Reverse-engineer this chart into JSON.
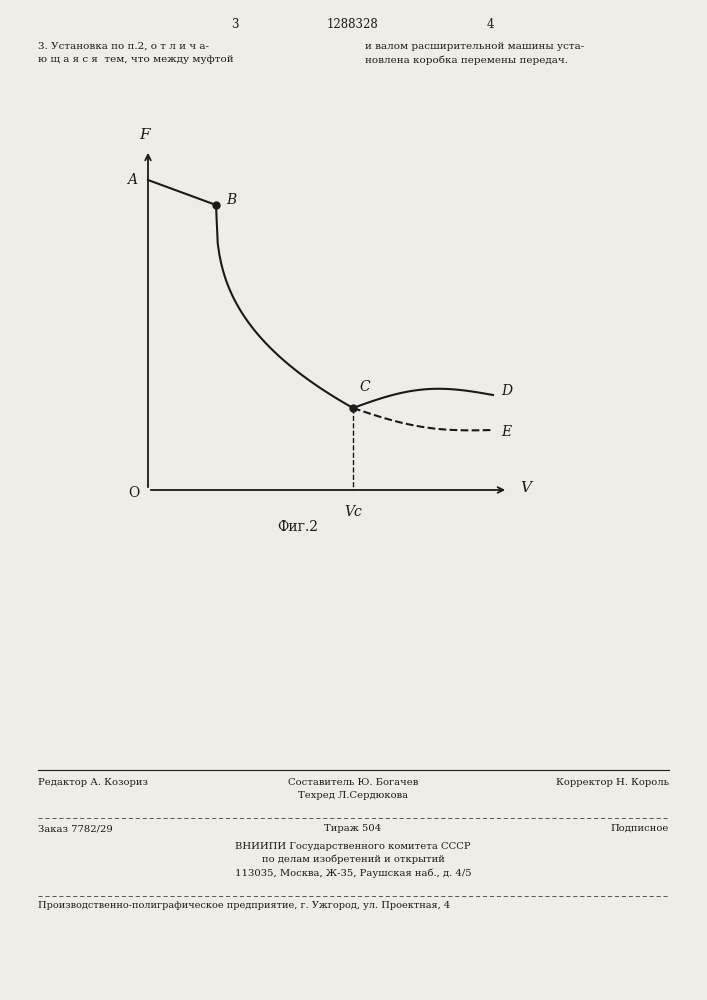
{
  "bg_color": "#f0ede8",
  "page_number_left": "3",
  "page_center_title": "1288328",
  "page_number_right": "4",
  "top_left_text": "3. Установка по п.2, о т л и ч а-\nю щ а я с я  тем, что между муфтой",
  "top_right_text": "и валом расширительной машины уста-\nновлена коробка перемены передач.",
  "fig_label": "Фиг.2",
  "axis_label_F": "F",
  "axis_label_V": "V",
  "axis_label_O": "O",
  "point_labels": [
    "A",
    "B",
    "C",
    "D",
    "E"
  ],
  "vc_label": "Vс",
  "footer_line1_left": "Редактор А. Козориз",
  "footer_line1_center": "Составитель Ю. Богачев\nТехред Л.Сердюкова",
  "footer_line1_right": "Корректор Н. Король",
  "footer_line2_left": "Заказ 7782/29",
  "footer_line2_center": "Тираж 504",
  "footer_line2_right": "Подписное",
  "footer_line3": "ВНИИПИ Государственного комитета СССР\nпо делам изобретений и открытий\n113035, Москва, Ж-35, Раушская наб., д. 4/5",
  "footer_line4": "Производственно-полиграфическое предприятие, г. Ужгород, ул. Проектная, 4",
  "text_color": "#1a1a1a",
  "line_color": "#1a1a1a"
}
